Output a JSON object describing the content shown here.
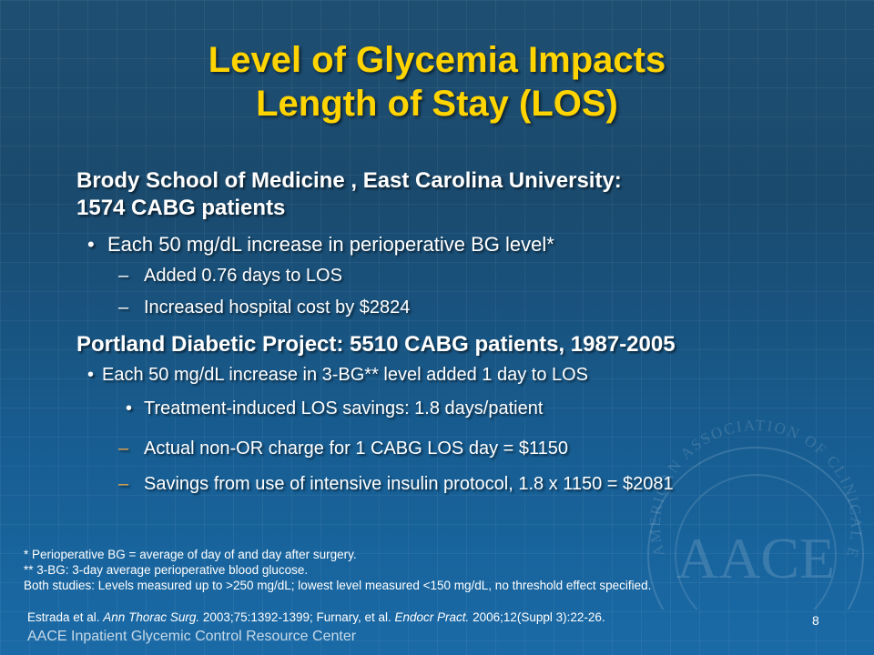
{
  "title": {
    "line1": "Level of Glycemia Impacts",
    "line2": "Length of Stay (LOS)"
  },
  "study1": {
    "heading_line1": "Brody School of Medicine , East Carolina University:",
    "heading_line2": "1574 CABG patients",
    "bullet": "Each 50 mg/dL increase in perioperative BG level*",
    "sub1": "Added 0.76 days to LOS",
    "sub2": "Increased hospital cost by $2824"
  },
  "study2": {
    "heading": "Portland Diabetic Project: 5510 CABG patients, 1987-2005",
    "bullet": "Each 50 mg/dL increase in 3-BG** level added 1 day to LOS",
    "sub_bullet": "Treatment-induced LOS savings: 1.8 days/patient",
    "dash1": "Actual non-OR charge for 1 CABG LOS day = $1150",
    "dash2": "Savings from use of intensive insulin protocol, 1.8 x 1150 = $2081"
  },
  "footnotes": {
    "note1": "* Perioperative BG = average of day of and day after surgery.",
    "note2": "** 3-BG: 3-day average perioperative blood glucose.",
    "note3": "Both studies: Levels measured up to >250 mg/dL; lowest level measured <150 mg/dL, no threshold effect specified."
  },
  "citation": {
    "a": "Estrada et al. ",
    "a_journal": "Ann Thorac Surg.",
    "a_ref": " 2003;75:1392-1399; Furnary, et al. ",
    "b_journal": "Endocr Pract.",
    "b_ref": " 2006;12(Suppl 3):22-26."
  },
  "footer": "AACE Inpatient Glycemic Control Resource Center",
  "page_number": "8",
  "seal": {
    "ring_text": "AMERICAN ASSOCIATION OF CLINICAL ENDOCRINOLOGISTS",
    "letters": "AACE"
  },
  "colors": {
    "title": "#ffd400",
    "body_text": "#ffffff",
    "background": "#1a5a8c"
  }
}
